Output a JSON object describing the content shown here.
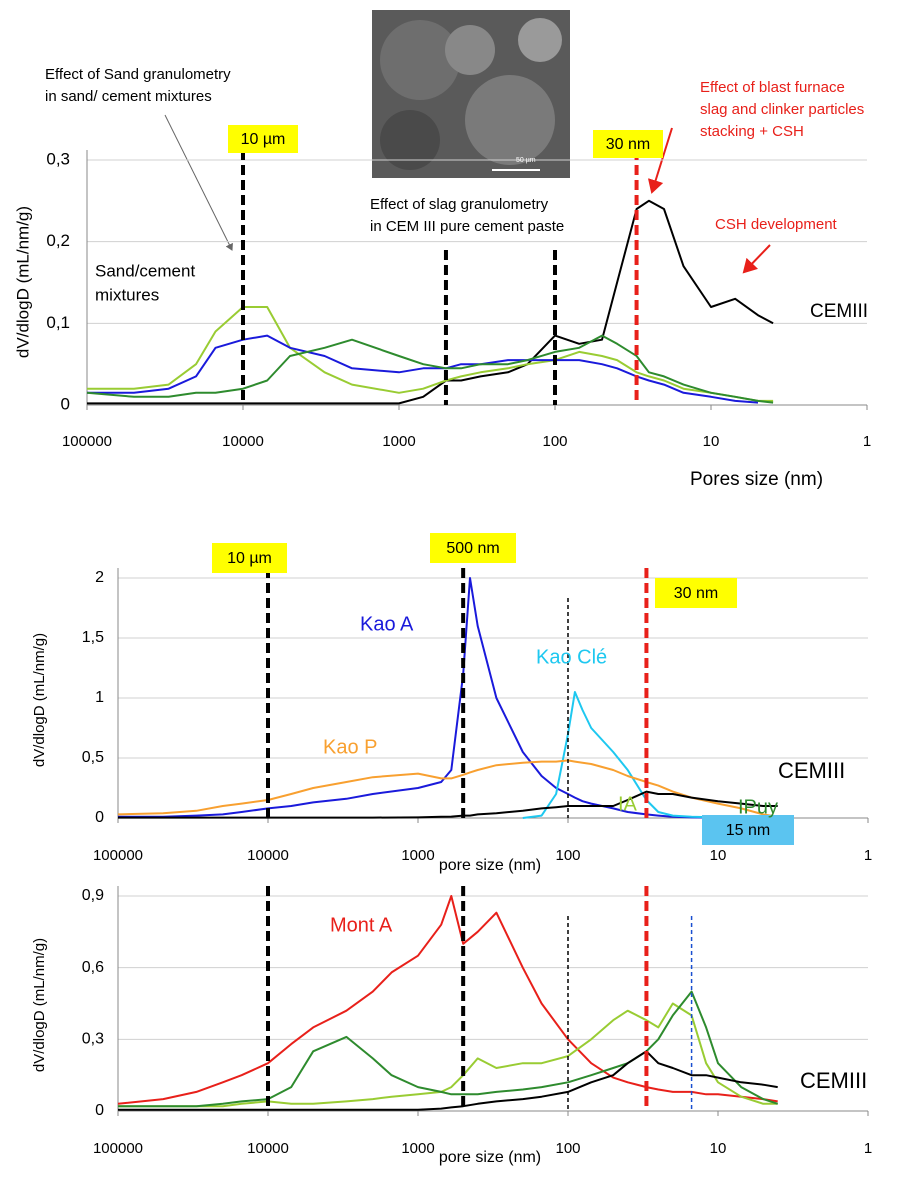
{
  "chart_data": [
    {
      "type": "line",
      "xscale": "log",
      "xlim": [
        100000,
        1
      ],
      "ylim": [
        0,
        0.3
      ],
      "xticks": [
        100000,
        10000,
        1000,
        100,
        10,
        1
      ],
      "yticks": [
        0,
        {
          "value": 0.1,
          "label": "0,1"
        },
        {
          "value": 0.2,
          "label": "0,2"
        },
        {
          "value": 0.3,
          "label": "0,3"
        }
      ],
      "grid": true,
      "ylabel": "dV/dlogD (mL/nm/g)",
      "xlabel": "Pores size (nm)",
      "image_scale": "50 µm",
      "x": [
        100000,
        50000,
        30000,
        20000,
        15000,
        10000,
        7000,
        5000,
        3000,
        2000,
        1000,
        700,
        500,
        400,
        300,
        200,
        150,
        100,
        70,
        50,
        40,
        30,
        25,
        20,
        15,
        10,
        7,
        5,
        4
      ],
      "series": [
        {
          "name": "CEMIII",
          "color": "#000000",
          "values": [
            0.002,
            0.002,
            0.002,
            0.002,
            0.002,
            0.002,
            0.002,
            0.002,
            0.002,
            0.002,
            0.002,
            0.01,
            0.03,
            0.03,
            0.035,
            0.04,
            0.05,
            0.085,
            0.075,
            0.08,
            0.15,
            0.24,
            0.25,
            0.24,
            0.17,
            0.12,
            0.13,
            0.11,
            0.1
          ]
        },
        {
          "color": "#99cc33",
          "values": [
            0.02,
            0.02,
            0.025,
            0.05,
            0.09,
            0.12,
            0.12,
            0.07,
            0.04,
            0.025,
            0.015,
            0.02,
            0.03,
            0.035,
            0.04,
            0.045,
            0.05,
            0.055,
            0.065,
            0.06,
            0.055,
            0.04,
            0.035,
            0.03,
            0.02,
            0.015,
            0.01,
            0.005,
            0.005
          ]
        },
        {
          "color": "#1a1adb",
          "values": [
            0.015,
            0.015,
            0.02,
            0.035,
            0.07,
            0.08,
            0.085,
            0.07,
            0.06,
            0.045,
            0.04,
            0.045,
            0.045,
            0.05,
            0.05,
            0.055,
            0.055,
            0.055,
            0.055,
            0.05,
            0.045,
            0.035,
            0.03,
            0.025,
            0.015,
            0.01,
            0.005,
            0.003,
            null
          ]
        },
        {
          "color": "#2e8b2e",
          "values": [
            0.015,
            0.01,
            0.01,
            0.015,
            0.015,
            0.02,
            0.03,
            0.06,
            0.07,
            0.08,
            0.06,
            0.05,
            0.045,
            0.045,
            0.05,
            0.05,
            0.055,
            0.065,
            0.07,
            0.085,
            0.075,
            0.06,
            0.04,
            0.035,
            0.025,
            0.015,
            0.01,
            0.005,
            0.003
          ]
        }
      ],
      "vlines": [
        {
          "x": 10000,
          "color": "#000000",
          "style": "thick",
          "label": "10 µm",
          "label_bg": "#ffff00"
        },
        {
          "x": 500,
          "color": "#000000",
          "style": "thick"
        },
        {
          "x": 100,
          "color": "#000000",
          "style": "thick"
        },
        {
          "x": 30,
          "color": "#e8201a",
          "style": "thick",
          "label": "30 nm",
          "label_bg": "#ffff00"
        }
      ],
      "annotations": [
        {
          "lines": [
            "Effect of Sand granulometry",
            "in sand/ cement mixtures"
          ],
          "color": "#000000"
        },
        {
          "lines": [
            "Sand/cement",
            "mixtures"
          ],
          "color": "#000000"
        },
        {
          "lines": [
            "Effect of slag granulometry",
            "in CEM III pure cement paste"
          ],
          "color": "#000000"
        },
        {
          "lines": [
            "Effect of blast furnace",
            "slag and clinker particles",
            "stacking + CSH"
          ],
          "color": "#e8201a"
        },
        {
          "lines": [
            "CSH development"
          ],
          "color": "#e8201a"
        }
      ]
    },
    {
      "type": "line",
      "xscale": "log",
      "xlim": [
        100000,
        1
      ],
      "ylim": [
        0,
        2
      ],
      "xticks": [
        100000,
        10000,
        1000,
        100,
        10,
        1
      ],
      "yticks": [
        0,
        {
          "value": 0.5,
          "label": "0,5"
        },
        1,
        {
          "value": 1.5,
          "label": "1,5"
        },
        2
      ],
      "grid": true,
      "ylabel": "dV/dlogD (mL/nm/g)",
      "xlabel": "pore size (nm)",
      "x": [
        100000,
        50000,
        30000,
        20000,
        15000,
        10000,
        7000,
        5000,
        3000,
        2000,
        1000,
        700,
        600,
        500,
        450,
        400,
        300,
        200,
        150,
        120,
        100,
        90,
        80,
        70,
        50,
        40,
        30,
        25,
        20,
        15,
        10,
        7,
        5,
        4
      ],
      "series": [
        {
          "name": "Kao A",
          "color": "#1a1adb",
          "values": [
            0.01,
            0.01,
            0.02,
            0.03,
            0.05,
            0.08,
            0.1,
            0.13,
            0.16,
            0.2,
            0.25,
            0.3,
            0.4,
            1.2,
            2.0,
            1.6,
            1.0,
            0.55,
            0.35,
            0.25,
            0.2,
            0.17,
            0.14,
            0.12,
            0.08,
            0.05,
            0.03,
            0.02,
            0.01,
            0.005,
            0.003,
            null,
            null,
            null
          ]
        },
        {
          "name": "Kao Clé",
          "color": "#1ec8f0",
          "values": [
            null,
            null,
            null,
            null,
            null,
            null,
            null,
            null,
            null,
            null,
            null,
            null,
            null,
            null,
            null,
            null,
            null,
            0.0,
            0.02,
            0.2,
            0.7,
            1.05,
            0.9,
            0.75,
            0.55,
            0.4,
            0.15,
            0.05,
            0.02,
            0.01,
            0.005,
            null,
            null,
            null
          ]
        },
        {
          "name": "Kao P",
          "color": "#f8a030",
          "values": [
            0.03,
            0.04,
            0.06,
            0.1,
            0.12,
            0.15,
            0.2,
            0.25,
            0.3,
            0.34,
            0.37,
            0.33,
            0.33,
            0.36,
            0.38,
            0.4,
            0.44,
            0.46,
            0.47,
            0.47,
            0.48,
            0.47,
            0.46,
            0.45,
            0.4,
            0.35,
            0.3,
            0.27,
            0.22,
            0.17,
            0.12,
            0.08,
            0.03,
            0.01
          ]
        },
        {
          "name": "CEMIII",
          "color": "#000000",
          "values": [
            0.003,
            0.003,
            0.003,
            0.003,
            0.003,
            0.003,
            0.003,
            0.003,
            0.003,
            0.003,
            0.005,
            0.01,
            0.012,
            0.02,
            0.02,
            0.03,
            0.04,
            0.06,
            0.08,
            0.09,
            0.1,
            0.1,
            0.1,
            0.1,
            0.1,
            0.15,
            0.22,
            0.2,
            0.2,
            0.17,
            0.14,
            0.12,
            0.1,
            0.1
          ]
        }
      ],
      "vlines": [
        {
          "x": 10000,
          "color": "#000000",
          "style": "thick",
          "label": "10 µm",
          "label_bg": "#ffff00"
        },
        {
          "x": 500,
          "color": "#000000",
          "style": "thick",
          "label": "500 nm",
          "label_bg": "#ffff00"
        },
        {
          "x": 100,
          "color": "#000000",
          "style": "thin"
        },
        {
          "x": 30,
          "color": "#e8201a",
          "style": "thick",
          "label": "30 nm",
          "label_bg": "#ffff00"
        }
      ]
    },
    {
      "type": "line",
      "xscale": "log",
      "xlim": [
        100000,
        1
      ],
      "ylim": [
        0,
        0.9
      ],
      "xticks": [
        100000,
        10000,
        1000,
        100,
        10,
        1
      ],
      "yticks": [
        0,
        {
          "value": 0.3,
          "label": "0,3"
        },
        {
          "value": 0.6,
          "label": "0,6"
        },
        {
          "value": 0.9,
          "label": "0,9"
        }
      ],
      "grid": true,
      "ylabel": "dV/dlogD (mL/nm/g)",
      "xlabel": "pore size (nm)",
      "x": [
        100000,
        50000,
        30000,
        20000,
        15000,
        10000,
        7000,
        5000,
        3000,
        2000,
        1500,
        1000,
        700,
        600,
        500,
        400,
        300,
        200,
        150,
        100,
        70,
        50,
        40,
        30,
        25,
        20,
        15,
        12,
        10,
        7,
        5,
        4
      ],
      "series": [
        {
          "name": "Mont A",
          "color": "#e8201a",
          "values": [
            0.03,
            0.05,
            0.08,
            0.12,
            0.15,
            0.2,
            0.28,
            0.35,
            0.42,
            0.5,
            0.58,
            0.65,
            0.78,
            0.9,
            0.7,
            0.75,
            0.83,
            0.6,
            0.45,
            0.3,
            0.2,
            0.14,
            0.12,
            0.1,
            0.09,
            0.08,
            0.08,
            0.07,
            0.07,
            0.06,
            0.05,
            0.04
          ]
        },
        {
          "name": "IA",
          "color": "#99cc33",
          "values": [
            0.02,
            0.02,
            0.02,
            0.02,
            0.03,
            0.04,
            0.03,
            0.03,
            0.04,
            0.05,
            0.06,
            0.07,
            0.08,
            0.1,
            0.15,
            0.22,
            0.18,
            0.2,
            0.2,
            0.23,
            0.3,
            0.38,
            0.42,
            0.38,
            0.35,
            0.45,
            0.4,
            0.2,
            0.12,
            0.06,
            0.03,
            0.03
          ]
        },
        {
          "name": "IPuy",
          "color": "#2e8b2e",
          "values": [
            0.02,
            0.02,
            0.02,
            0.03,
            0.04,
            0.05,
            0.1,
            0.25,
            0.31,
            0.22,
            0.15,
            0.1,
            0.08,
            0.07,
            0.07,
            0.07,
            0.08,
            0.09,
            0.1,
            0.12,
            0.15,
            0.18,
            0.2,
            0.25,
            0.3,
            0.4,
            0.5,
            0.35,
            0.2,
            0.1,
            0.05,
            0.03
          ]
        },
        {
          "name": "CEMIII",
          "color": "#000000",
          "values": [
            0.005,
            0.005,
            0.005,
            0.005,
            0.005,
            0.005,
            0.005,
            0.005,
            0.005,
            0.005,
            0.005,
            0.005,
            0.01,
            0.015,
            0.02,
            0.03,
            0.04,
            0.05,
            0.06,
            0.08,
            0.12,
            0.15,
            0.2,
            0.25,
            0.2,
            0.18,
            0.15,
            0.15,
            0.14,
            0.12,
            0.11,
            0.1
          ]
        }
      ],
      "vlines": [
        {
          "x": 10000,
          "color": "#000000",
          "style": "thick"
        },
        {
          "x": 500,
          "color": "#000000",
          "style": "thick"
        },
        {
          "x": 100,
          "color": "#000000",
          "style": "thin"
        },
        {
          "x": 30,
          "color": "#e8201a",
          "style": "thick"
        },
        {
          "x": 15,
          "color": "#1a4fd0",
          "style": "thin",
          "label": "15 nm",
          "label_bg": "#5bc4f0"
        }
      ]
    }
  ]
}
